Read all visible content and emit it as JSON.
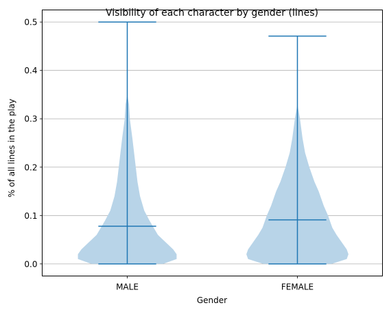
{
  "chart_data": {
    "type": "violin",
    "title": "Visibility of each character by gender (lines)",
    "xlabel": "Gender",
    "ylabel": "% of all lines in the play",
    "categories": [
      "MALE",
      "FEMALE"
    ],
    "ylim": [
      -0.025,
      0.525
    ],
    "yticks": [
      0.0,
      0.1,
      0.2,
      0.3,
      0.4,
      0.5
    ],
    "ytick_labels": [
      "0.0",
      "0.1",
      "0.2",
      "0.3",
      "0.4",
      "0.5"
    ],
    "grid": "y",
    "colors": {
      "body": "#b8d4e8",
      "line": "#1f77b4"
    },
    "series": [
      {
        "name": "MALE",
        "min": 0.0,
        "max": 0.5,
        "median": 0.078,
        "density_halfwidth": [
          [
            0.0,
            0.21
          ],
          [
            0.01,
            0.29
          ],
          [
            0.02,
            0.29
          ],
          [
            0.03,
            0.27
          ],
          [
            0.04,
            0.24
          ],
          [
            0.05,
            0.21
          ],
          [
            0.06,
            0.18
          ],
          [
            0.075,
            0.155
          ],
          [
            0.09,
            0.13
          ],
          [
            0.11,
            0.1
          ],
          [
            0.14,
            0.075
          ],
          [
            0.17,
            0.06
          ],
          [
            0.2,
            0.05
          ],
          [
            0.23,
            0.04
          ],
          [
            0.26,
            0.03
          ],
          [
            0.3,
            0.015
          ],
          [
            0.33,
            0.01
          ],
          [
            0.35,
            0.0
          ]
        ]
      },
      {
        "name": "FEMALE",
        "min": 0.0,
        "max": 0.471,
        "median": 0.091,
        "density_halfwidth": [
          [
            0.0,
            0.2
          ],
          [
            0.01,
            0.29
          ],
          [
            0.02,
            0.3
          ],
          [
            0.03,
            0.29
          ],
          [
            0.045,
            0.26
          ],
          [
            0.06,
            0.23
          ],
          [
            0.075,
            0.205
          ],
          [
            0.1,
            0.18
          ],
          [
            0.12,
            0.155
          ],
          [
            0.15,
            0.125
          ],
          [
            0.17,
            0.1
          ],
          [
            0.2,
            0.07
          ],
          [
            0.23,
            0.045
          ],
          [
            0.26,
            0.03
          ],
          [
            0.3,
            0.015
          ],
          [
            0.33,
            0.0
          ]
        ]
      }
    ]
  }
}
